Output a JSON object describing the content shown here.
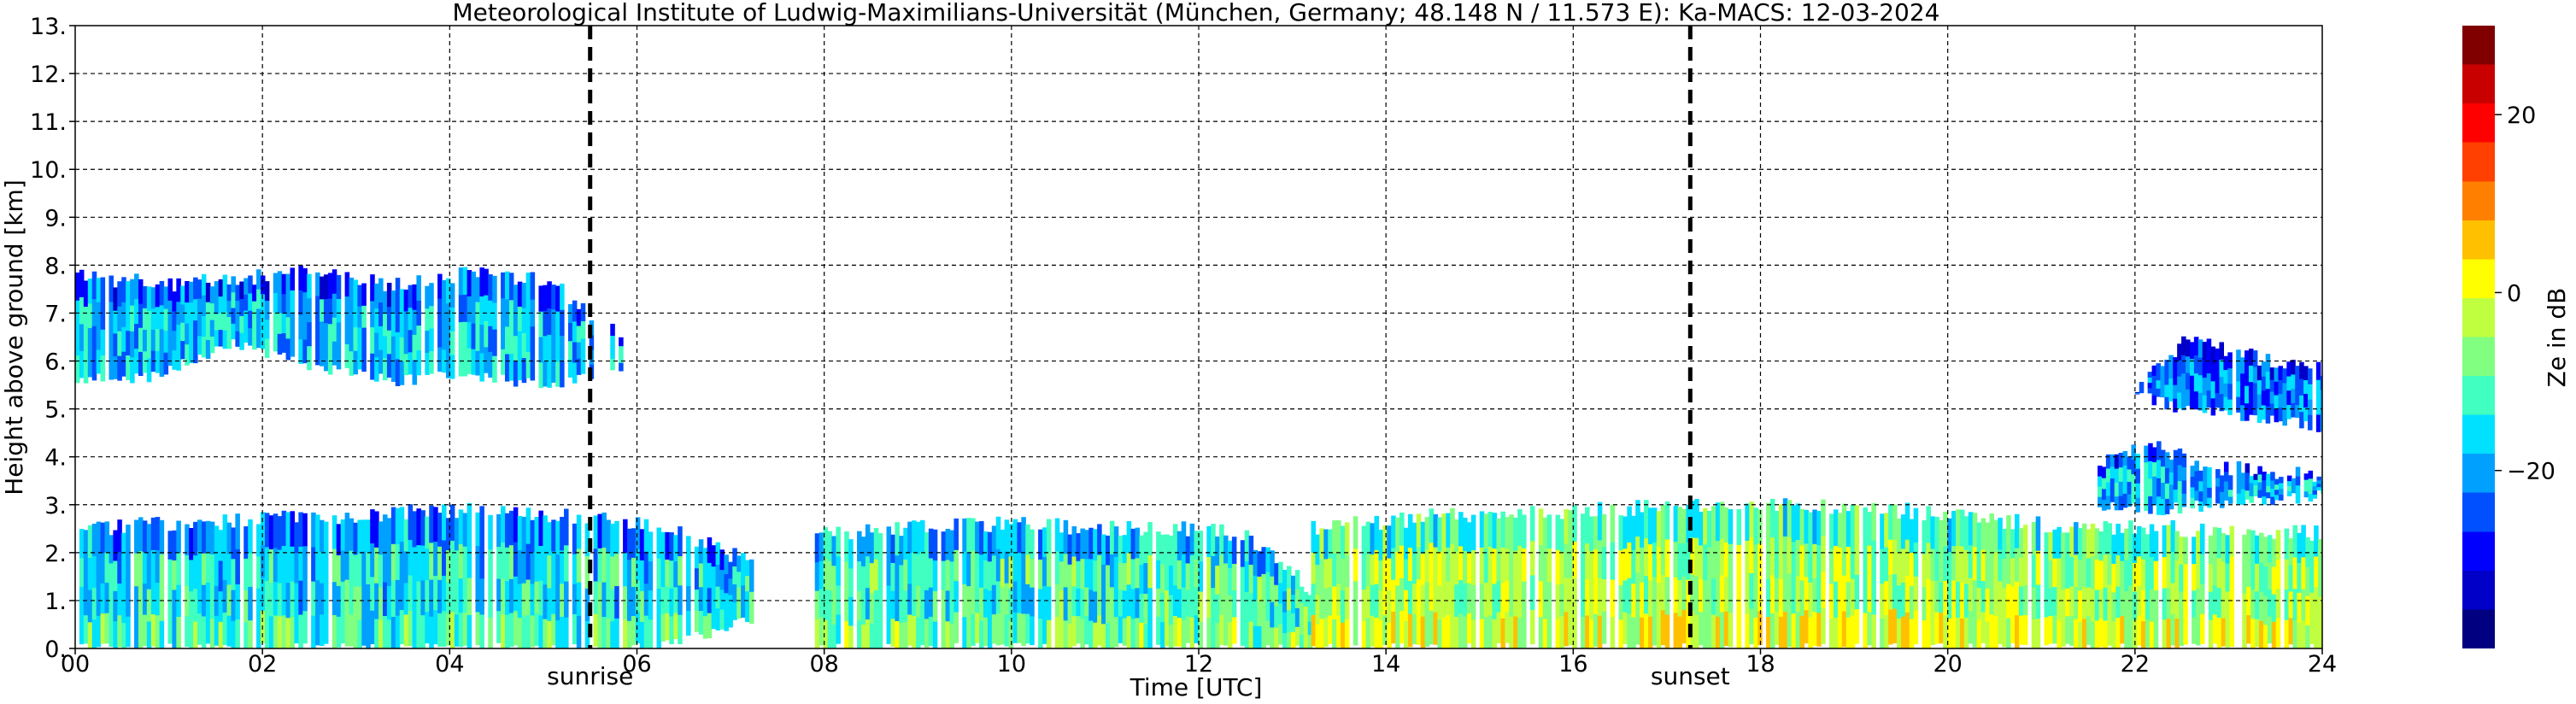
{
  "chart_data": {
    "type": "heatmap",
    "title": "Meteorological Institute of Ludwig-Maximilians-Universität (München, Germany; 48.148 N / 11.573 E):    Ka-MACS: 12-03-2024",
    "xlabel": "Time [UTC]",
    "ylabel": "Height above ground [km]",
    "xlim": [
      0,
      24
    ],
    "ylim": [
      0,
      13
    ],
    "x_ticks": [
      0,
      2,
      4,
      6,
      8,
      10,
      12,
      14,
      16,
      18,
      20,
      22,
      24
    ],
    "x_tick_labels": [
      "00",
      "02",
      "04",
      "06",
      "08",
      "10",
      "12",
      "14",
      "16",
      "18",
      "20",
      "22",
      "24"
    ],
    "y_ticks": [
      0,
      1,
      2,
      3,
      4,
      5,
      6,
      7,
      8,
      9,
      10,
      11,
      12,
      13
    ],
    "y_tick_labels": [
      "0.",
      "1.",
      "2.",
      "3.",
      "4.",
      "5.",
      "6.",
      "7.",
      "8.",
      "9.",
      "10.",
      "11.",
      "12.",
      "13."
    ],
    "grid": true,
    "events": [
      {
        "label": "sunrise",
        "x": 5.5
      },
      {
        "label": "sunset",
        "x": 17.25
      }
    ],
    "colorbar": {
      "label": "Ze in dB",
      "range": [
        -40,
        30
      ],
      "ticks": [
        -20,
        0,
        20
      ],
      "tick_labels": [
        "−20",
        "0",
        "20"
      ],
      "colormap": [
        "#000080",
        "#0000c8",
        "#0000ff",
        "#0050ff",
        "#00a0ff",
        "#00e0ff",
        "#40ffc0",
        "#80ff80",
        "#c0ff40",
        "#ffff00",
        "#ffc000",
        "#ff8000",
        "#ff4000",
        "#ff0000",
        "#c80000",
        "#800000"
      ]
    },
    "echo_regions": [
      {
        "name": "upper-cloud-night",
        "x": [
          0.0,
          5.85
        ],
        "base_km": [
          5.6,
          5.7,
          6.4,
          5.9,
          5.6,
          5.7,
          5.5,
          5.9
        ],
        "top_km": [
          7.8,
          7.6,
          7.7,
          7.9,
          7.6,
          7.8,
          7.7,
          6.5
        ],
        "ze_db": -18
      },
      {
        "name": "low-cloud-morning",
        "x": [
          0.0,
          7.2
        ],
        "base_km": [
          0,
          0,
          0,
          0,
          0,
          0,
          0,
          0.6
        ],
        "top_km": [
          2.5,
          2.6,
          2.7,
          2.8,
          2.9,
          2.8,
          2.6,
          1.8
        ],
        "ze_db": -15
      },
      {
        "name": "low-cloud-day",
        "x": [
          7.9,
          13.2
        ],
        "base_km": [
          0,
          0,
          0,
          0,
          0,
          0,
          0,
          0
        ],
        "top_km": [
          2.4,
          2.5,
          2.6,
          2.6,
          2.5,
          2.5,
          2.4,
          1.2
        ],
        "ze_db": -12
      },
      {
        "name": "low-cloud-evening",
        "x": [
          13.2,
          24.0
        ],
        "base_km": [
          0,
          0,
          0,
          0,
          0,
          0,
          0,
          0
        ],
        "top_km": [
          2.5,
          2.8,
          2.9,
          3.0,
          2.9,
          2.6,
          2.5,
          2.4
        ],
        "ze_db": -5
      },
      {
        "name": "mid-cloud-late",
        "x": [
          21.6,
          24.0
        ],
        "base_km": [
          3.0,
          2.9,
          3.0,
          3.1,
          3.2
        ],
        "top_km": [
          3.9,
          4.2,
          3.8,
          3.7,
          3.6
        ],
        "ze_db": -18
      },
      {
        "name": "upper-cloud-late",
        "x": [
          22.0,
          24.0
        ],
        "base_km": [
          5.3,
          5.0,
          4.9,
          4.8,
          4.6
        ],
        "top_km": [
          5.5,
          6.4,
          6.2,
          6.0,
          5.8
        ],
        "ze_db": -22
      }
    ]
  }
}
